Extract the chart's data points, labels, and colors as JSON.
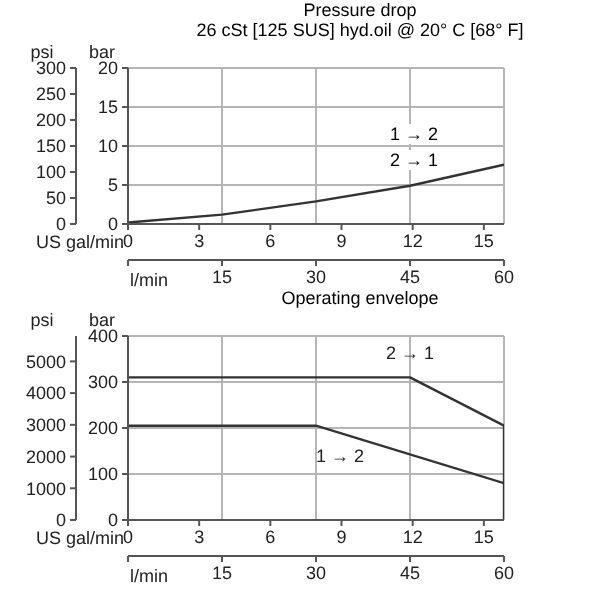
{
  "chart_data": [
    {
      "type": "line",
      "title": "Pressure drop",
      "subtitle": "26 cSt [125 SUS] hyd.oil @ 20° C [68° F]",
      "xlabel": "l/min",
      "x2label": "US gal/min",
      "ylabel": "bar",
      "y2label": "psi",
      "xlim": [
        0,
        60
      ],
      "xticks": [
        {
          "value": 0,
          "label": null
        },
        15,
        30,
        45,
        60
      ],
      "x2lim": [
        0,
        15.85
      ],
      "x2ticks": [
        0,
        3,
        6,
        9,
        12,
        15
      ],
      "ylim": [
        0,
        20
      ],
      "yticks": [
        0,
        5,
        10,
        15,
        20
      ],
      "y2lim": [
        0,
        300
      ],
      "y2ticks": [
        0,
        50,
        100,
        150,
        200,
        250,
        300
      ],
      "grid": true,
      "legend": false,
      "marker": "none",
      "series": [
        {
          "color": "#333333",
          "x": [
            0,
            15,
            30,
            45,
            60
          ],
          "values": [
            0.2,
            1.2,
            2.9,
            4.9,
            7.6
          ]
        }
      ],
      "annotations": [
        "1 → 2",
        "2 → 1"
      ]
    },
    {
      "type": "line",
      "title": "Operating envelope",
      "xlabel": "l/min",
      "x2label": "US gal/min",
      "ylabel": "bar",
      "y2label": "psi",
      "xlim": [
        0,
        60
      ],
      "xticks": [
        {
          "value": 0,
          "label": null
        },
        15,
        30,
        45,
        60
      ],
      "x2lim": [
        0,
        15.85
      ],
      "x2ticks": [
        0,
        3,
        6,
        9,
        12,
        15
      ],
      "ylim": [
        0,
        400
      ],
      "yticks": [
        0,
        100,
        200,
        300,
        400
      ],
      "y2lim": [
        0,
        5800
      ],
      "y2ticks": [
        0,
        1000,
        2000,
        3000,
        4000,
        5000
      ],
      "grid": true,
      "legend": false,
      "marker": "none",
      "series": [
        {
          "name": "2 → 1",
          "color": "#333333",
          "x": [
            0,
            45,
            60,
            60
          ],
          "values": [
            310,
            310,
            205,
            0
          ]
        },
        {
          "name": "1 → 2",
          "color": "#333333",
          "x": [
            0,
            30,
            60
          ],
          "values": [
            205,
            205,
            80
          ]
        }
      ]
    }
  ]
}
